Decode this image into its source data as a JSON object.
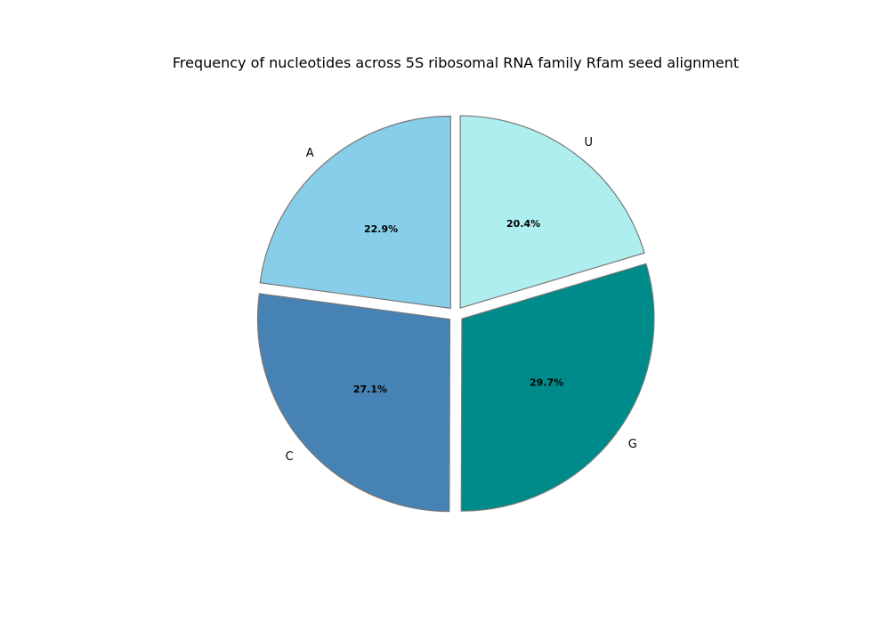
{
  "chart_data": {
    "type": "pie",
    "title": "Frequency of nucleotides across 5S ribosomal RNA family Rfam seed alignment",
    "categories": [
      "A",
      "C",
      "G",
      "U"
    ],
    "values": [
      22.9,
      27.1,
      29.7,
      20.4
    ],
    "percent_labels": [
      "22.9%",
      "27.1%",
      "29.7%",
      "20.4%"
    ],
    "colors": [
      "#87CEEB",
      "#4682B4",
      "#008B8B",
      "#AFEEEE"
    ],
    "edge_color": "#777777",
    "start_angle_deg": 90,
    "direction": "counterclockwise",
    "exploded": true
  }
}
